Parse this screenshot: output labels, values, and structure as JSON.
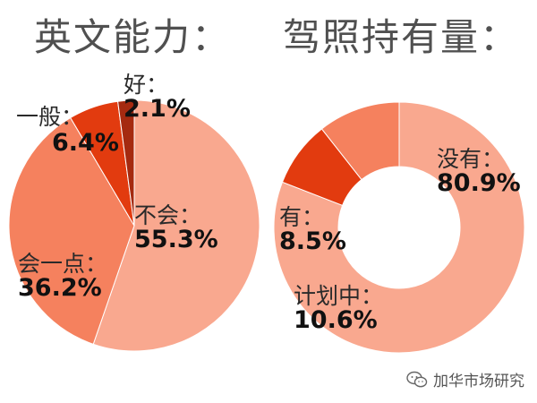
{
  "chart_data": [
    {
      "type": "pie",
      "title": "英文能力：",
      "categories": [
        "不会：",
        "会一点：",
        "一般：",
        "好："
      ],
      "values": [
        55.3,
        36.2,
        6.4,
        2.1
      ],
      "value_labels": [
        "55.3%",
        "36.2%",
        "6.4%",
        "2.1%"
      ],
      "colors": [
        "#f9a88f",
        "#f5815e",
        "#e23b0f",
        "#a52a10"
      ]
    },
    {
      "type": "pie",
      "subtype": "donut",
      "title": "驾照持有量：",
      "categories": [
        "没有：",
        "有：",
        "计划中："
      ],
      "values": [
        80.9,
        8.5,
        10.6
      ],
      "value_labels": [
        "80.9%",
        "8.5%",
        "10.6%"
      ],
      "colors": [
        "#f9a88f",
        "#e23b0f",
        "#f5815e"
      ]
    }
  ],
  "watermark": {
    "text": "加华市场研究",
    "icon": "wechat-icon"
  }
}
